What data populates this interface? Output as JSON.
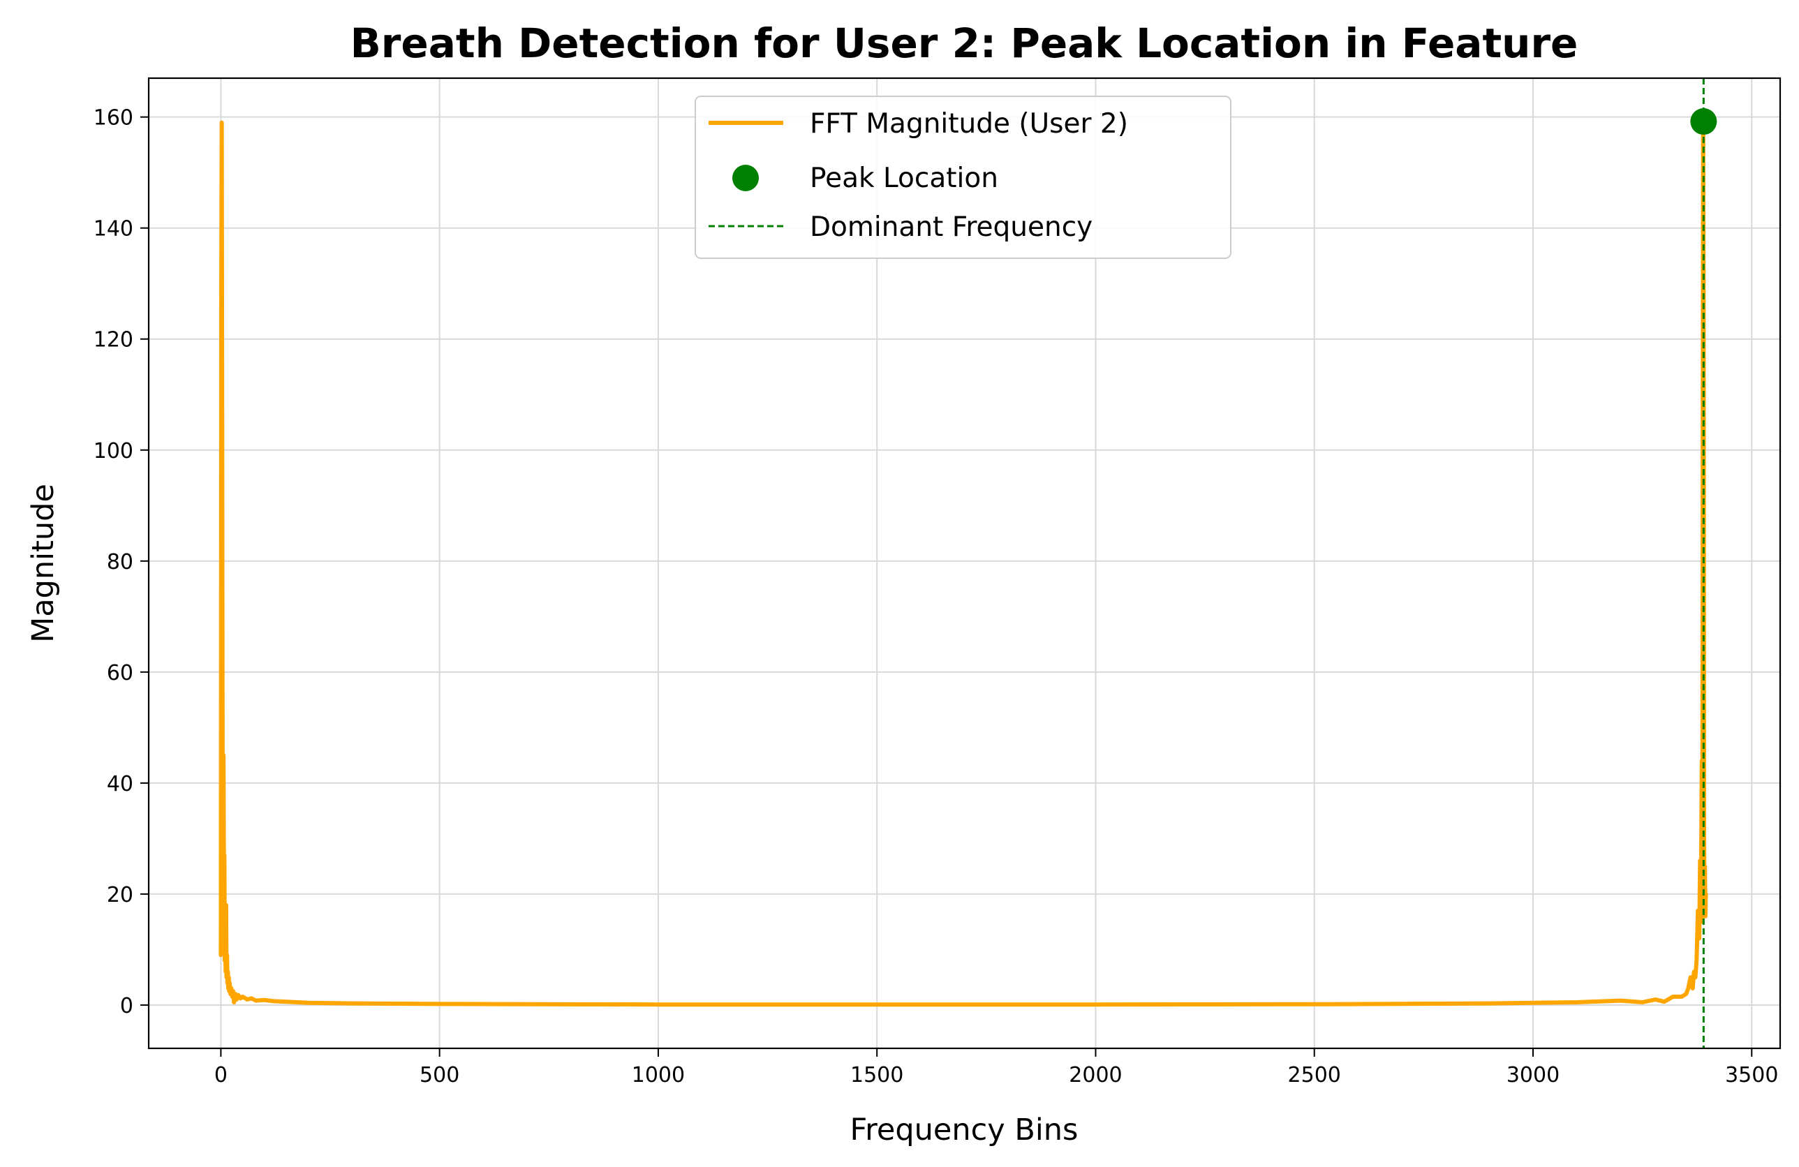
{
  "chart_data": {
    "type": "line",
    "title": "Breath Detection for User 2: Peak Location in Feature",
    "xlabel": "Frequency Bins",
    "ylabel": "Magnitude",
    "xlim": [
      -165,
      3565
    ],
    "ylim": [
      -7.8,
      167
    ],
    "xticks": [
      0,
      500,
      1000,
      1500,
      2000,
      2500,
      3000,
      3500
    ],
    "yticks": [
      0,
      20,
      40,
      60,
      80,
      100,
      120,
      140,
      160
    ],
    "grid": true,
    "legend_position": "top-center",
    "colors": {
      "fft": "#ffa500",
      "peak": "#008000",
      "dominant": "#008000",
      "grid": "#d9d9d9"
    },
    "series": [
      {
        "name": "FFT Magnitude (User 2)",
        "kind": "line",
        "x": [
          0,
          1,
          2,
          3,
          4,
          5,
          6,
          7,
          8,
          9,
          10,
          11,
          12,
          13,
          14,
          15,
          16,
          17,
          18,
          19,
          20,
          22,
          24,
          26,
          28,
          30,
          33,
          36,
          40,
          45,
          50,
          60,
          70,
          80,
          100,
          120,
          150,
          200,
          300,
          500,
          1000,
          1500,
          1700,
          2000,
          2500,
          2900,
          3100,
          3200,
          3250,
          3280,
          3300,
          3320,
          3340,
          3350,
          3355,
          3360,
          3365,
          3368,
          3371,
          3374,
          3377,
          3380,
          3382,
          3384,
          3386,
          3387,
          3388,
          3389,
          3390,
          3391,
          3392,
          3393,
          3394,
          3395
        ],
        "y": [
          9,
          127,
          159,
          100,
          40,
          15,
          45,
          22,
          27,
          8,
          12,
          6,
          18,
          5,
          9,
          4,
          6,
          3,
          5,
          2.5,
          4,
          2,
          3,
          1.5,
          2.5,
          0.5,
          2,
          1,
          1.8,
          1.2,
          1.5,
          1,
          1.2,
          0.8,
          0.9,
          0.7,
          0.6,
          0.4,
          0.3,
          0.2,
          0.1,
          0.1,
          0.1,
          0.1,
          0.15,
          0.3,
          0.5,
          0.8,
          0.5,
          1,
          0.6,
          1.5,
          1.5,
          2,
          3,
          5,
          3,
          6,
          5,
          8,
          17,
          12,
          26,
          20,
          44,
          15,
          100,
          159,
          127,
          30,
          18,
          25,
          16,
          20
        ]
      },
      {
        "name": "Peak Location",
        "kind": "scatter",
        "points": [
          {
            "x": 3390,
            "y": 159.2
          }
        ]
      },
      {
        "name": "Dominant Frequency",
        "kind": "vline",
        "x": 3390
      }
    ]
  }
}
